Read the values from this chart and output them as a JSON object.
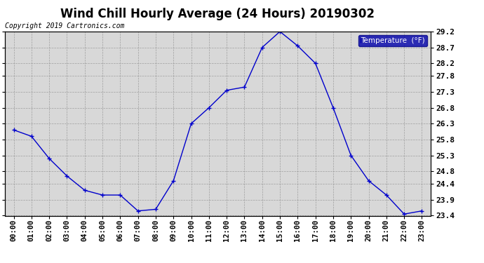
{
  "title": "Wind Chill Hourly Average (24 Hours) 20190302",
  "copyright_text": "Copyright 2019 Cartronics.com",
  "legend_label": "Temperature  (°F)",
  "x_labels": [
    "00:00",
    "01:00",
    "02:00",
    "03:00",
    "04:00",
    "05:00",
    "06:00",
    "07:00",
    "08:00",
    "09:00",
    "10:00",
    "11:00",
    "12:00",
    "13:00",
    "14:00",
    "15:00",
    "16:00",
    "17:00",
    "18:00",
    "19:00",
    "20:00",
    "21:00",
    "22:00",
    "23:00"
  ],
  "y_values": [
    26.1,
    25.9,
    25.2,
    24.65,
    24.2,
    24.05,
    24.05,
    23.55,
    23.6,
    24.5,
    26.3,
    26.8,
    27.35,
    27.45,
    28.7,
    29.2,
    28.75,
    28.2,
    26.8,
    25.3,
    24.5,
    24.05,
    23.45,
    23.55
  ],
  "ylim_min": 23.4,
  "ylim_max": 29.2,
  "yticks": [
    23.4,
    23.9,
    24.4,
    24.8,
    25.3,
    25.8,
    26.3,
    26.8,
    27.3,
    27.8,
    28.2,
    28.7,
    29.2
  ],
  "ytick_labels": [
    "23.4",
    "23.9",
    "24.4",
    "24.8",
    "25.3",
    "25.8",
    "26.3",
    "26.8",
    "27.3",
    "27.8",
    "28.2",
    "28.7",
    "29.2"
  ],
  "line_color": "#0000cc",
  "marker_color": "#0000cc",
  "bg_color": "#ffffff",
  "plot_bg_color": "#d8d8d8",
  "grid_color": "#888888",
  "title_fontsize": 12,
  "legend_bg_color": "#0000aa",
  "legend_text_color": "#ffffff",
  "copyright_fontsize": 7,
  "tick_fontsize": 7.5
}
